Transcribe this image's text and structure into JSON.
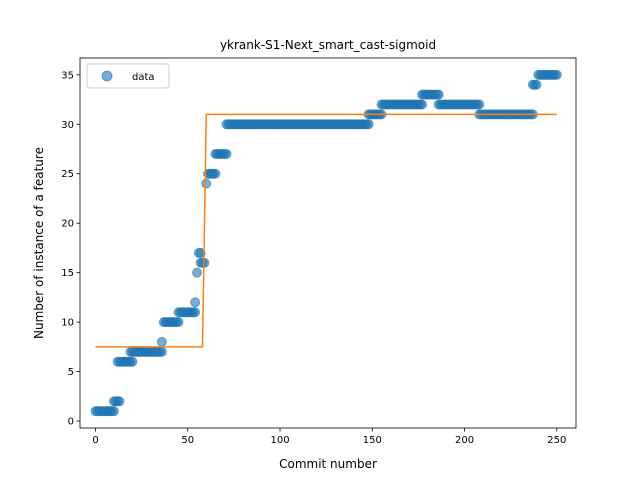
{
  "chart_data": {
    "type": "scatter",
    "title": "ykrank-S1-Next_smart_cast-sigmoid",
    "xlabel": "Commit number",
    "ylabel": "Number of instance of a feature",
    "xlim": [
      -8.4,
      260.4
    ],
    "ylim": [
      -0.7,
      36.7
    ],
    "xticks": [
      0,
      50,
      100,
      150,
      200,
      250
    ],
    "yticks": [
      0,
      5,
      10,
      15,
      20,
      25,
      30,
      35
    ],
    "legend": {
      "placement": "top-left",
      "entries": [
        {
          "label": "data",
          "marker": "circle"
        }
      ]
    },
    "colors": {
      "data": "#1f77b4",
      "fit": "#ff7f0e"
    },
    "series": [
      {
        "name": "data",
        "kind": "scatter",
        "runs": [
          {
            "x_start": 0,
            "x_end": 10,
            "y": 1
          },
          {
            "x_start": 10,
            "x_end": 13,
            "y": 2
          },
          {
            "x_start": 12,
            "x_end": 20,
            "y": 6
          },
          {
            "x_start": 19,
            "x_end": 36,
            "y": 7
          },
          {
            "x_start": 36,
            "x_end": 36,
            "y": 8
          },
          {
            "x_start": 37,
            "x_end": 45,
            "y": 10
          },
          {
            "x_start": 45,
            "x_end": 54,
            "y": 11
          },
          {
            "x_start": 54,
            "x_end": 54,
            "y": 12
          },
          {
            "x_start": 55,
            "x_end": 55,
            "y": 15
          },
          {
            "x_start": 56,
            "x_end": 57,
            "y": 17
          },
          {
            "x_start": 57,
            "x_end": 59,
            "y": 16
          },
          {
            "x_start": 60,
            "x_end": 60,
            "y": 24
          },
          {
            "x_start": 61,
            "x_end": 65,
            "y": 25
          },
          {
            "x_start": 65,
            "x_end": 71,
            "y": 27
          },
          {
            "x_start": 71,
            "x_end": 148,
            "y": 30
          },
          {
            "x_start": 148,
            "x_end": 155,
            "y": 31
          },
          {
            "x_start": 155,
            "x_end": 177,
            "y": 32
          },
          {
            "x_start": 177,
            "x_end": 186,
            "y": 33
          },
          {
            "x_start": 186,
            "x_end": 208,
            "y": 32
          },
          {
            "x_start": 208,
            "x_end": 237,
            "y": 31
          },
          {
            "x_start": 237,
            "x_end": 239,
            "y": 34
          },
          {
            "x_start": 240,
            "x_end": 250,
            "y": 35
          }
        ]
      },
      {
        "name": "",
        "kind": "line",
        "points": [
          [
            0,
            7.5
          ],
          [
            58,
            7.5
          ],
          [
            60,
            31
          ],
          [
            250,
            31
          ]
        ]
      }
    ]
  }
}
